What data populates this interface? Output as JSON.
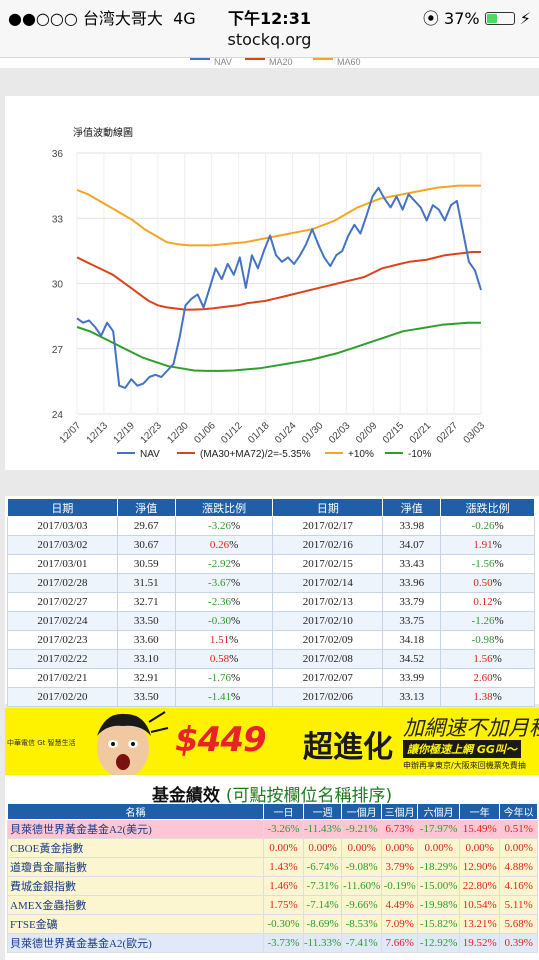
{
  "status": {
    "carrier": "●●○○○ 台湾大哥大",
    "network": "4G",
    "time": "下午12:31",
    "battery": "37%",
    "orientation_lock": "⦿"
  },
  "url": "stockq.org",
  "top_legend": {
    "items": [
      "NAV",
      "MA20",
      "MA60"
    ]
  },
  "chart_data": {
    "type": "line",
    "title": "淨值波動線圖",
    "ylim": [
      24,
      36
    ],
    "yticks": [
      24,
      27,
      30,
      33,
      36
    ],
    "xticks": [
      "12/07",
      "12/13",
      "12/19",
      "12/23",
      "12/30",
      "01/06",
      "01/12",
      "01/18",
      "01/24",
      "01/30",
      "02/03",
      "02/09",
      "02/15",
      "02/21",
      "02/27",
      "03/03"
    ],
    "grid": true,
    "legend_position": "bottom",
    "series": [
      {
        "name": "NAV",
        "color": "#4472c4",
        "values": [
          28.4,
          28.2,
          28.3,
          28.0,
          27.6,
          28.2,
          27.8,
          25.3,
          25.2,
          25.6,
          25.3,
          25.4,
          25.7,
          25.8,
          25.7,
          26.0,
          26.3,
          27.5,
          29.0,
          29.3,
          29.5,
          28.9,
          29.8,
          30.7,
          30.2,
          30.9,
          30.4,
          31.2,
          29.8,
          31.3,
          30.7,
          31.5,
          32.2,
          31.3,
          31.0,
          31.2,
          30.9,
          31.3,
          31.8,
          32.5,
          31.8,
          31.2,
          30.8,
          31.3,
          31.5,
          32.2,
          32.7,
          32.3,
          33.1,
          34.0,
          34.4,
          33.9,
          33.5,
          34.0,
          33.4,
          34.1,
          33.8,
          33.5,
          32.9,
          33.6,
          33.4,
          32.9,
          33.6,
          33.8,
          32.4,
          31.0,
          30.6,
          29.7
        ]
      },
      {
        "name": "(MA30+MA72)/2=-5.35%",
        "color": "#d9441c",
        "values": [
          31.2,
          31.0,
          30.8,
          30.6,
          30.4,
          30.1,
          29.8,
          29.5,
          29.2,
          29.0,
          28.9,
          28.85,
          28.8,
          28.8,
          28.82,
          28.85,
          28.9,
          28.95,
          29.0,
          29.1,
          29.15,
          29.2,
          29.3,
          29.4,
          29.5,
          29.6,
          29.7,
          29.8,
          29.9,
          30.0,
          30.1,
          30.2,
          30.3,
          30.5,
          30.7,
          30.8,
          30.9,
          31.0,
          31.05,
          31.1,
          31.2,
          31.3,
          31.35,
          31.4,
          31.45,
          31.45
        ]
      },
      {
        "name": "+10%",
        "color": "#f4a521",
        "values": [
          34.3,
          34.1,
          33.8,
          33.5,
          33.2,
          32.9,
          32.5,
          32.2,
          31.9,
          31.8,
          31.75,
          31.75,
          31.75,
          31.8,
          31.85,
          31.9,
          32.0,
          32.1,
          32.2,
          32.3,
          32.4,
          32.5,
          32.7,
          32.9,
          33.2,
          33.5,
          33.7,
          33.9,
          34.0,
          34.1,
          34.2,
          34.3,
          34.4,
          34.45,
          34.5,
          34.5,
          34.5
        ]
      },
      {
        "name": "-10%",
        "color": "#2e9e2e",
        "values": [
          28.0,
          27.8,
          27.5,
          27.2,
          26.9,
          26.6,
          26.4,
          26.2,
          26.1,
          26.0,
          25.98,
          25.98,
          26.0,
          26.05,
          26.1,
          26.2,
          26.3,
          26.4,
          26.5,
          26.65,
          26.8,
          27.0,
          27.2,
          27.4,
          27.6,
          27.8,
          27.9,
          28.0,
          28.1,
          28.15,
          28.2,
          28.2
        ]
      }
    ]
  },
  "table": {
    "headers": [
      "日期",
      "淨值",
      "漲跌比例",
      "日期",
      "淨值",
      "漲跌比例"
    ],
    "rows": [
      [
        "2017/03/03",
        "29.67",
        "-3.26%",
        "2017/02/17",
        "33.98",
        "-0.26%"
      ],
      [
        "2017/03/02",
        "30.67",
        "0.26%",
        "2017/02/16",
        "34.07",
        "1.91%"
      ],
      [
        "2017/03/01",
        "30.59",
        "-2.92%",
        "2017/02/15",
        "33.43",
        "-1.56%"
      ],
      [
        "2017/02/28",
        "31.51",
        "-3.67%",
        "2017/02/14",
        "33.96",
        "0.50%"
      ],
      [
        "2017/02/27",
        "32.71",
        "-2.36%",
        "2017/02/13",
        "33.79",
        "0.12%"
      ],
      [
        "2017/02/24",
        "33.50",
        "-0.30%",
        "2017/02/10",
        "33.75",
        "-1.26%"
      ],
      [
        "2017/02/23",
        "33.60",
        "1.51%",
        "2017/02/09",
        "34.18",
        "-0.98%"
      ],
      [
        "2017/02/22",
        "33.10",
        "0.58%",
        "2017/02/08",
        "34.52",
        "1.56%"
      ],
      [
        "2017/02/21",
        "32.91",
        "-1.76%",
        "2017/02/07",
        "33.99",
        "2.60%"
      ],
      [
        "2017/02/20",
        "33.50",
        "-1.41%",
        "2017/02/06",
        "33.13",
        "1.38%"
      ]
    ]
  },
  "banner": {
    "brand": "中華電信 Gt 智慧生活",
    "price": "$449",
    "slogan": "超進化",
    "line1": "加網速不加月租",
    "line2": "讓你極速上網 GG叫～",
    "line3": "申辦再享東京/大阪來回機票免費抽"
  },
  "perf": {
    "title": "基金績效",
    "hint": "(可點按欄位名稱排序)",
    "headers": [
      "名稱",
      "一日",
      "一週",
      "一個月",
      "三個月",
      "六個月",
      "一年",
      "今年以"
    ],
    "rows": [
      [
        "貝萊德世界黃金基金A2(美元)",
        "-3.26%",
        "-11.43%",
        "-9.21%",
        "6.73%",
        "-17.97%",
        "15.49%",
        "0.51%"
      ],
      [
        "CBOE黃金指數",
        "0.00%",
        "0.00%",
        "0.00%",
        "0.00%",
        "0.00%",
        "0.00%",
        "0.00%"
      ],
      [
        "道瓊貴金屬指數",
        "1.43%",
        "-6.74%",
        "-9.08%",
        "3.79%",
        "-18.29%",
        "12.90%",
        "4.88%"
      ],
      [
        "費城金銀指數",
        "1.46%",
        "-7.31%",
        "-11.60%",
        "-0.19%",
        "-15.00%",
        "22.80%",
        "4.16%"
      ],
      [
        "AMEX金蟲指數",
        "1.75%",
        "-7.14%",
        "-9.66%",
        "4.49%",
        "-19.98%",
        "10.54%",
        "5.11%"
      ],
      [
        "FTSE金礦",
        "-0.30%",
        "-8.69%",
        "-8.53%",
        "7.09%",
        "-15.82%",
        "13.21%",
        "5.68%"
      ],
      [
        "貝萊德世界黃金基金A2(歐元)",
        "-3.73%",
        "-11.33%",
        "-7.41%",
        "7.66%",
        "-12.92%",
        "19.52%",
        "0.39%"
      ]
    ]
  }
}
